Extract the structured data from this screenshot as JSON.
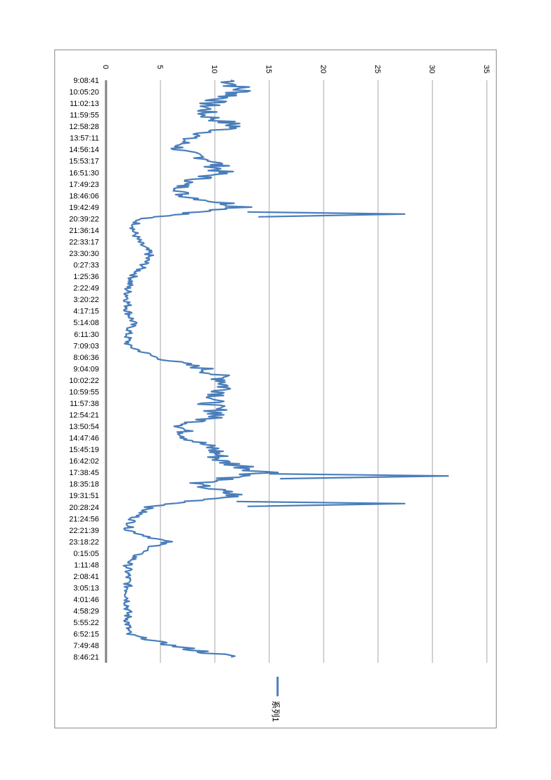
{
  "chart_data": {
    "type": "line",
    "title": "",
    "xlabel": "",
    "ylabel": "",
    "ylim": [
      0,
      35
    ],
    "yticks": [
      0,
      5,
      10,
      15,
      20,
      25,
      30,
      35
    ],
    "grid": true,
    "legend_position": "bottom",
    "orientation": "rotated-90",
    "line_color": "#4a7ebb",
    "categories": [
      "9:08:41",
      "10:05:20",
      "11:02:13",
      "11:59:55",
      "12:58:28",
      "13:57:11",
      "14:56:14",
      "15:53:17",
      "16:51:30",
      "17:49:23",
      "18:46:06",
      "19:42:49",
      "20:39:22",
      "21:36:14",
      "22:33:17",
      "23:30:30",
      "0:27:33",
      "1:25:36",
      "2:22:49",
      "3:20:22",
      "4:17:15",
      "5:14:08",
      "6:11:30",
      "7:09:03",
      "8:06:36",
      "9:04:09",
      "10:02:22",
      "10:59:55",
      "11:57:38",
      "12:54:21",
      "13:50:54",
      "14:47:46",
      "15:45:19",
      "16:42:02",
      "17:38:45",
      "18:35:18",
      "19:31:51",
      "20:28:24",
      "21:24:56",
      "22:21:39",
      "23:18:22",
      "0:15:05",
      "1:11:48",
      "2:08:41",
      "3:05:13",
      "4:01:46",
      "4:58:29",
      "5:55:22",
      "6:52:15",
      "7:49:48",
      "8:46:21"
    ],
    "series": [
      {
        "name": "系列1",
        "values": [
          11.5,
          12.5,
          9.5,
          9.0,
          12.0,
          7.5,
          6.5,
          10.0,
          10.5,
          7.0,
          7.0,
          13.0,
          3.0,
          2.5,
          3.0,
          4.0,
          3.5,
          2.5,
          2.0,
          2.0,
          2.0,
          2.5,
          2.0,
          2.0,
          4.5,
          9.0,
          11.0,
          11.0,
          9.5,
          10.5,
          7.0,
          7.5,
          10.0,
          10.5,
          15.0,
          8.0,
          12.0,
          4.0,
          2.5,
          2.0,
          5.5,
          3.0,
          2.0,
          2.0,
          2.0,
          2.0,
          2.0,
          2.0,
          2.0,
          6.0,
          11.5
        ],
        "peaks": [
          27.5,
          31.5,
          27.5
        ]
      }
    ]
  }
}
